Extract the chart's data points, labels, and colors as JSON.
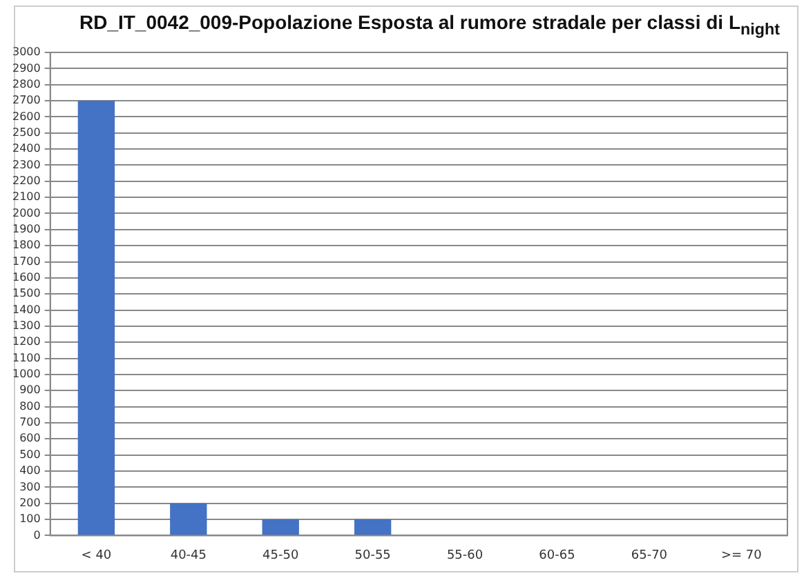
{
  "chart_data": {
    "type": "bar",
    "title": "RD_IT_0042_009-Popolazione Esposta al rumore stradale per classi di L$_{night}$",
    "categories": [
      "< 40",
      "40-45",
      "45-50",
      "50-55",
      "55-60",
      "60-65",
      "65-70",
      ">= 70"
    ],
    "values": [
      2700,
      200,
      100,
      100,
      0,
      0,
      0,
      0
    ],
    "color": "#4472c4",
    "ylim": [
      0,
      3000
    ],
    "yticks": [
      0,
      100,
      200,
      300,
      400,
      500,
      600,
      700,
      800,
      900,
      1000,
      1100,
      1200,
      1300,
      1400,
      1500,
      1600,
      1700,
      1800,
      1900,
      2000,
      2100,
      2200,
      2300,
      2400,
      2500,
      2600,
      2700,
      2800,
      2900,
      3000
    ],
    "grid": "y",
    "legend": false
  }
}
